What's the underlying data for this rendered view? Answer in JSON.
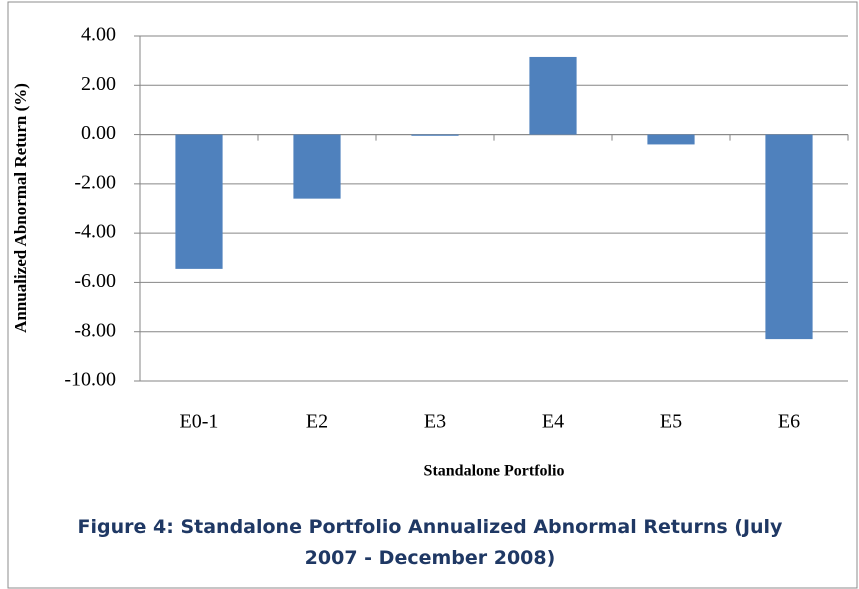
{
  "chart_data": {
    "type": "bar",
    "title": "Figure 4: Standalone Portfolio Annualized Abnormal Returns (July 2007 - December 2008)",
    "x_label": "Standalone Portfolio",
    "y_label": "Annualized Abnormal Return (%)",
    "categories": [
      "E0-1",
      "E2",
      "E3",
      "E4",
      "E5",
      "E6"
    ],
    "values": [
      -5.45,
      -2.6,
      -0.05,
      3.15,
      -0.4,
      -8.3
    ],
    "color": "#4f81bd",
    "ylim": [
      -10,
      4
    ],
    "yticks": [
      {
        "value": 4,
        "label": "4.00"
      },
      {
        "value": 2,
        "label": "2.00"
      },
      {
        "value": 0,
        "label": "0.00"
      },
      {
        "value": -2,
        "label": "-2.00"
      },
      {
        "value": -4,
        "label": "-4.00"
      },
      {
        "value": -6,
        "label": "-6.00"
      },
      {
        "value": -8,
        "label": "-8.00"
      },
      {
        "value": -10,
        "label": "-10.00"
      }
    ],
    "grid": true
  }
}
